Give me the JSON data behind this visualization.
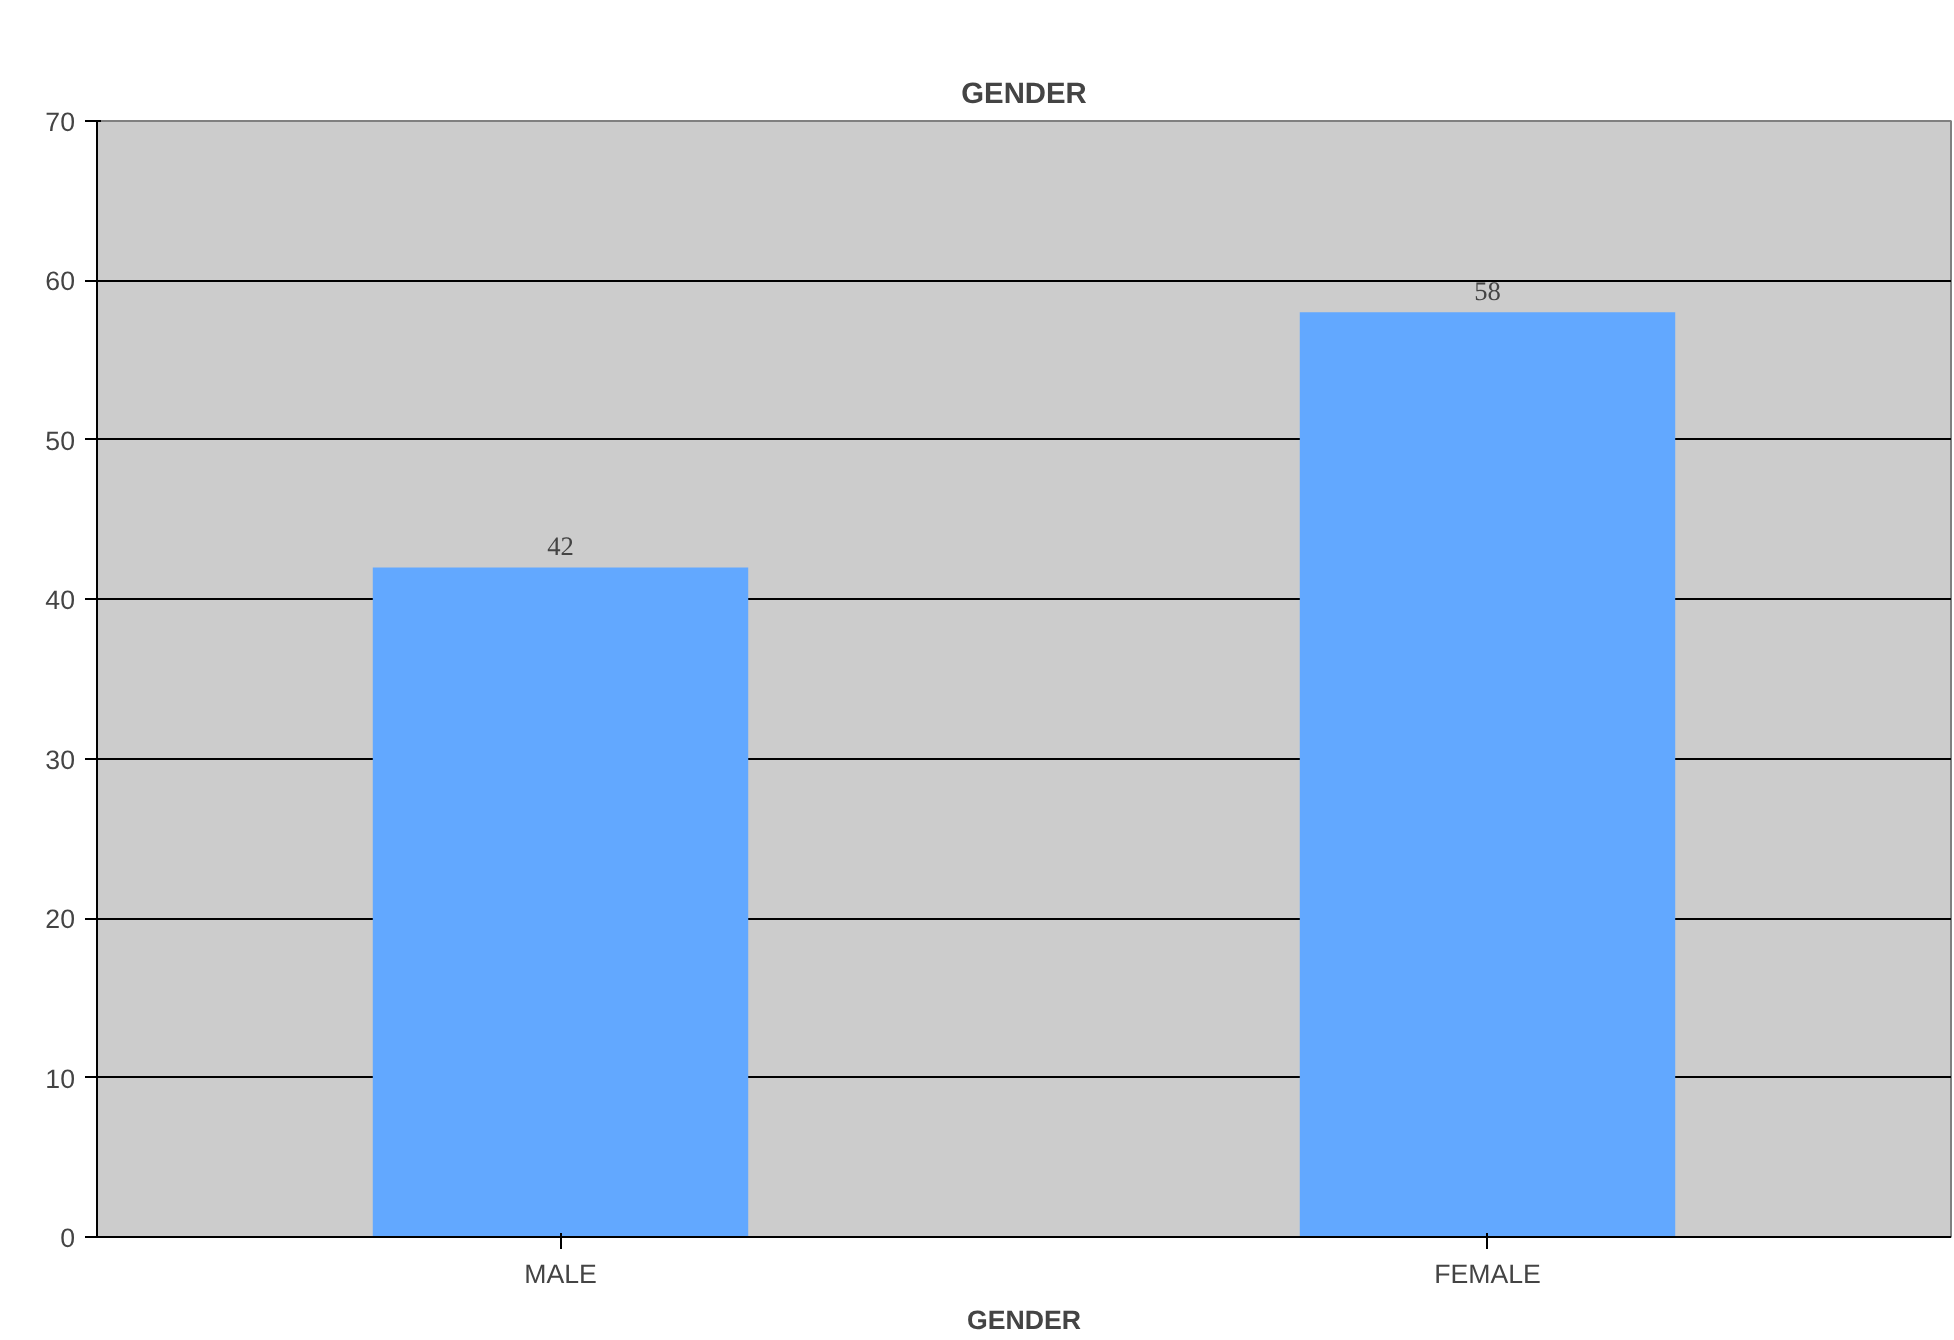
{
  "chart_data": {
    "type": "bar",
    "title": "GENDER",
    "xlabel": "GENDER",
    "categories": [
      "MALE",
      "FEMALE"
    ],
    "values": [
      42,
      58
    ],
    "color": "#62a8ff",
    "ylim": [
      0,
      70
    ],
    "yticks": [
      0,
      10,
      20,
      30,
      40,
      50,
      60,
      70
    ],
    "grid": "y",
    "data_labels": true
  }
}
